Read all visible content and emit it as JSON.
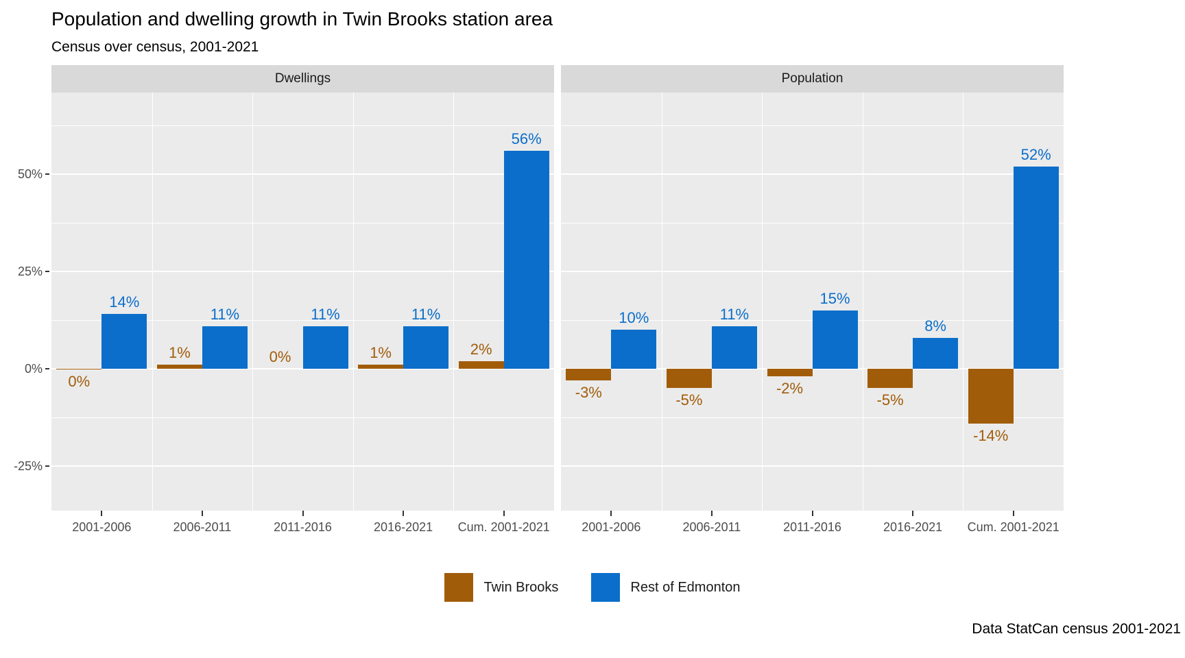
{
  "title": "Population and dwelling growth in Twin Brooks station area",
  "subtitle": "Census over census, 2001-2021",
  "caption": "Data StatCan census 2001-2021",
  "colors": {
    "twin_brooks": "#a15c0a",
    "rest_of_edmonton": "#0b6ecb",
    "panel_background": "#ebebeb",
    "strip_background": "#d9d9d9",
    "gridline": "#ffffff",
    "axis_text": "#4d4d4d"
  },
  "legend": {
    "items": [
      {
        "label": "Twin Brooks",
        "color": "#a15c0a"
      },
      {
        "label": "Rest of Edmonton",
        "color": "#0b6ecb"
      }
    ]
  },
  "chart_data": {
    "type": "bar",
    "title": "Population and dwelling growth in Twin Brooks station area",
    "subtitle": "Census over census, 2001-2021",
    "caption": "Data StatCan census 2001-2021",
    "categories": [
      "2001-2006",
      "2006-2011",
      "2011-2016",
      "2016-2021",
      "Cum. 2001-2021"
    ],
    "y_axis": {
      "unit": "percent",
      "tick_labels": [
        "50%",
        "25%",
        "0%",
        "-25%"
      ],
      "tick_values": [
        50,
        25,
        0,
        -25
      ],
      "minor_values": [
        62.5,
        37.5,
        12.5,
        -12.5
      ],
      "range": [
        -36,
        71
      ]
    },
    "grid": true,
    "legend_position": "bottom",
    "facets": [
      {
        "name": "Dwellings",
        "series": [
          {
            "name": "Twin Brooks",
            "values": [
              -0.2,
              1,
              0,
              1,
              2
            ],
            "labels": [
              "0%",
              "1%",
              "0%",
              "1%",
              "2%"
            ]
          },
          {
            "name": "Rest of Edmonton",
            "values": [
              14,
              11,
              11,
              11,
              56
            ],
            "labels": [
              "14%",
              "11%",
              "11%",
              "11%",
              "56%"
            ]
          }
        ]
      },
      {
        "name": "Population",
        "series": [
          {
            "name": "Twin Brooks",
            "values": [
              -3,
              -5,
              -2,
              -5,
              -14
            ],
            "labels": [
              "-3%",
              "-5%",
              "-2%",
              "-5%",
              "-14%"
            ]
          },
          {
            "name": "Rest of Edmonton",
            "values": [
              10,
              11,
              15,
              8,
              52
            ],
            "labels": [
              "10%",
              "11%",
              "15%",
              "8%",
              "52%"
            ]
          }
        ]
      }
    ]
  }
}
